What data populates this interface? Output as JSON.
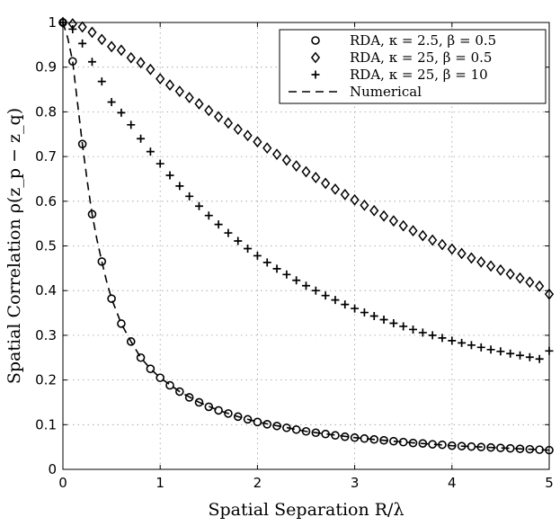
{
  "chart_data": {
    "type": "line",
    "title": "",
    "xlabel": "Spatial Separation R/λ",
    "ylabel": "Spatial Correlation ρ(z_p − z_q)",
    "xlim": [
      0,
      5
    ],
    "ylim": [
      0,
      1
    ],
    "xticks": [
      "0",
      "1",
      "2",
      "3",
      "4",
      "5"
    ],
    "yticks": [
      "0",
      "0.1",
      "0.2",
      "0.3",
      "0.4",
      "0.5",
      "0.6",
      "0.7",
      "0.8",
      "0.9",
      "1"
    ],
    "grid": true,
    "legend_position": "top-right",
    "series": [
      {
        "name": "RDA, κ = 2.5, β = 0.5",
        "marker": "circle",
        "x": [
          0,
          0.1,
          0.2,
          0.3,
          0.4,
          0.5,
          0.6,
          0.7,
          0.8,
          0.9,
          1.0,
          1.1,
          1.2,
          1.3,
          1.4,
          1.5,
          1.6,
          1.7,
          1.8,
          1.9,
          2.0,
          2.1,
          2.2,
          2.3,
          2.4,
          2.5,
          2.6,
          2.7,
          2.8,
          2.9,
          3.0,
          3.1,
          3.2,
          3.3,
          3.4,
          3.5,
          3.6,
          3.7,
          3.8,
          3.9,
          4.0,
          4.1,
          4.2,
          4.3,
          4.4,
          4.5,
          4.6,
          4.7,
          4.8,
          4.9,
          5.0
        ],
        "y": [
          1.0,
          0.913,
          0.728,
          0.571,
          0.465,
          0.382,
          0.326,
          0.286,
          0.25,
          0.225,
          0.205,
          0.188,
          0.174,
          0.161,
          0.15,
          0.14,
          0.132,
          0.125,
          0.118,
          0.112,
          0.106,
          0.101,
          0.097,
          0.093,
          0.089,
          0.085,
          0.082,
          0.079,
          0.076,
          0.073,
          0.071,
          0.069,
          0.067,
          0.065,
          0.063,
          0.061,
          0.059,
          0.058,
          0.056,
          0.055,
          0.053,
          0.052,
          0.051,
          0.05,
          0.049,
          0.048,
          0.047,
          0.046,
          0.045,
          0.044,
          0.043
        ]
      },
      {
        "name": "RDA, κ = 25, β = 0.5",
        "marker": "diamond",
        "x": [
          0,
          0.1,
          0.2,
          0.3,
          0.4,
          0.5,
          0.6,
          0.7,
          0.8,
          0.9,
          1.0,
          1.1,
          1.2,
          1.3,
          1.4,
          1.5,
          1.6,
          1.7,
          1.8,
          1.9,
          2.0,
          2.1,
          2.2,
          2.3,
          2.4,
          2.5,
          2.6,
          2.7,
          2.8,
          2.9,
          3.0,
          3.1,
          3.2,
          3.3,
          3.4,
          3.5,
          3.6,
          3.7,
          3.8,
          3.9,
          4.0,
          4.1,
          4.2,
          4.3,
          4.4,
          4.5,
          4.6,
          4.7,
          4.8,
          4.9,
          5.0
        ],
        "y": [
          1.0,
          0.997,
          0.99,
          0.978,
          0.962,
          0.946,
          0.938,
          0.921,
          0.91,
          0.895,
          0.874,
          0.86,
          0.846,
          0.832,
          0.818,
          0.803,
          0.789,
          0.775,
          0.761,
          0.747,
          0.733,
          0.719,
          0.705,
          0.692,
          0.679,
          0.666,
          0.653,
          0.64,
          0.627,
          0.615,
          0.603,
          0.591,
          0.579,
          0.567,
          0.556,
          0.545,
          0.534,
          0.523,
          0.513,
          0.503,
          0.493,
          0.483,
          0.473,
          0.464,
          0.455,
          0.446,
          0.437,
          0.428,
          0.419,
          0.41,
          0.392
        ]
      },
      {
        "name": "RDA, κ = 25, β = 10",
        "marker": "plus",
        "x": [
          0,
          0.1,
          0.2,
          0.3,
          0.4,
          0.5,
          0.6,
          0.7,
          0.8,
          0.9,
          1.0,
          1.1,
          1.2,
          1.3,
          1.4,
          1.5,
          1.6,
          1.7,
          1.8,
          1.9,
          2.0,
          2.1,
          2.2,
          2.3,
          2.4,
          2.5,
          2.6,
          2.7,
          2.8,
          2.9,
          3.0,
          3.1,
          3.2,
          3.3,
          3.4,
          3.5,
          3.6,
          3.7,
          3.8,
          3.9,
          4.0,
          4.1,
          4.2,
          4.3,
          4.4,
          4.5,
          4.6,
          4.7,
          4.8,
          4.9,
          5.0
        ],
        "y": [
          1.0,
          0.985,
          0.953,
          0.912,
          0.868,
          0.822,
          0.798,
          0.771,
          0.74,
          0.711,
          0.684,
          0.658,
          0.634,
          0.611,
          0.589,
          0.568,
          0.548,
          0.529,
          0.511,
          0.494,
          0.478,
          0.463,
          0.449,
          0.436,
          0.423,
          0.411,
          0.4,
          0.389,
          0.379,
          0.369,
          0.36,
          0.351,
          0.343,
          0.335,
          0.327,
          0.32,
          0.313,
          0.306,
          0.3,
          0.294,
          0.288,
          0.283,
          0.278,
          0.273,
          0.268,
          0.264,
          0.259,
          0.255,
          0.251,
          0.247,
          0.265
        ]
      },
      {
        "name": "Numerical",
        "marker": "dashed-line",
        "x": [
          0,
          0.05,
          0.1,
          0.15,
          0.2,
          0.25,
          0.3,
          0.35,
          0.4,
          0.45,
          0.5,
          0.6,
          0.7,
          0.8,
          0.9,
          1.0,
          1.2,
          1.4,
          1.6,
          1.8,
          2.0,
          2.5,
          3.0,
          3.5,
          4.0,
          4.5,
          5.0
        ],
        "y": [
          1.0,
          0.965,
          0.913,
          0.82,
          0.728,
          0.645,
          0.571,
          0.514,
          0.465,
          0.42,
          0.382,
          0.326,
          0.286,
          0.25,
          0.225,
          0.205,
          0.174,
          0.15,
          0.132,
          0.118,
          0.106,
          0.085,
          0.071,
          0.061,
          0.053,
          0.048,
          0.043
        ]
      }
    ]
  }
}
